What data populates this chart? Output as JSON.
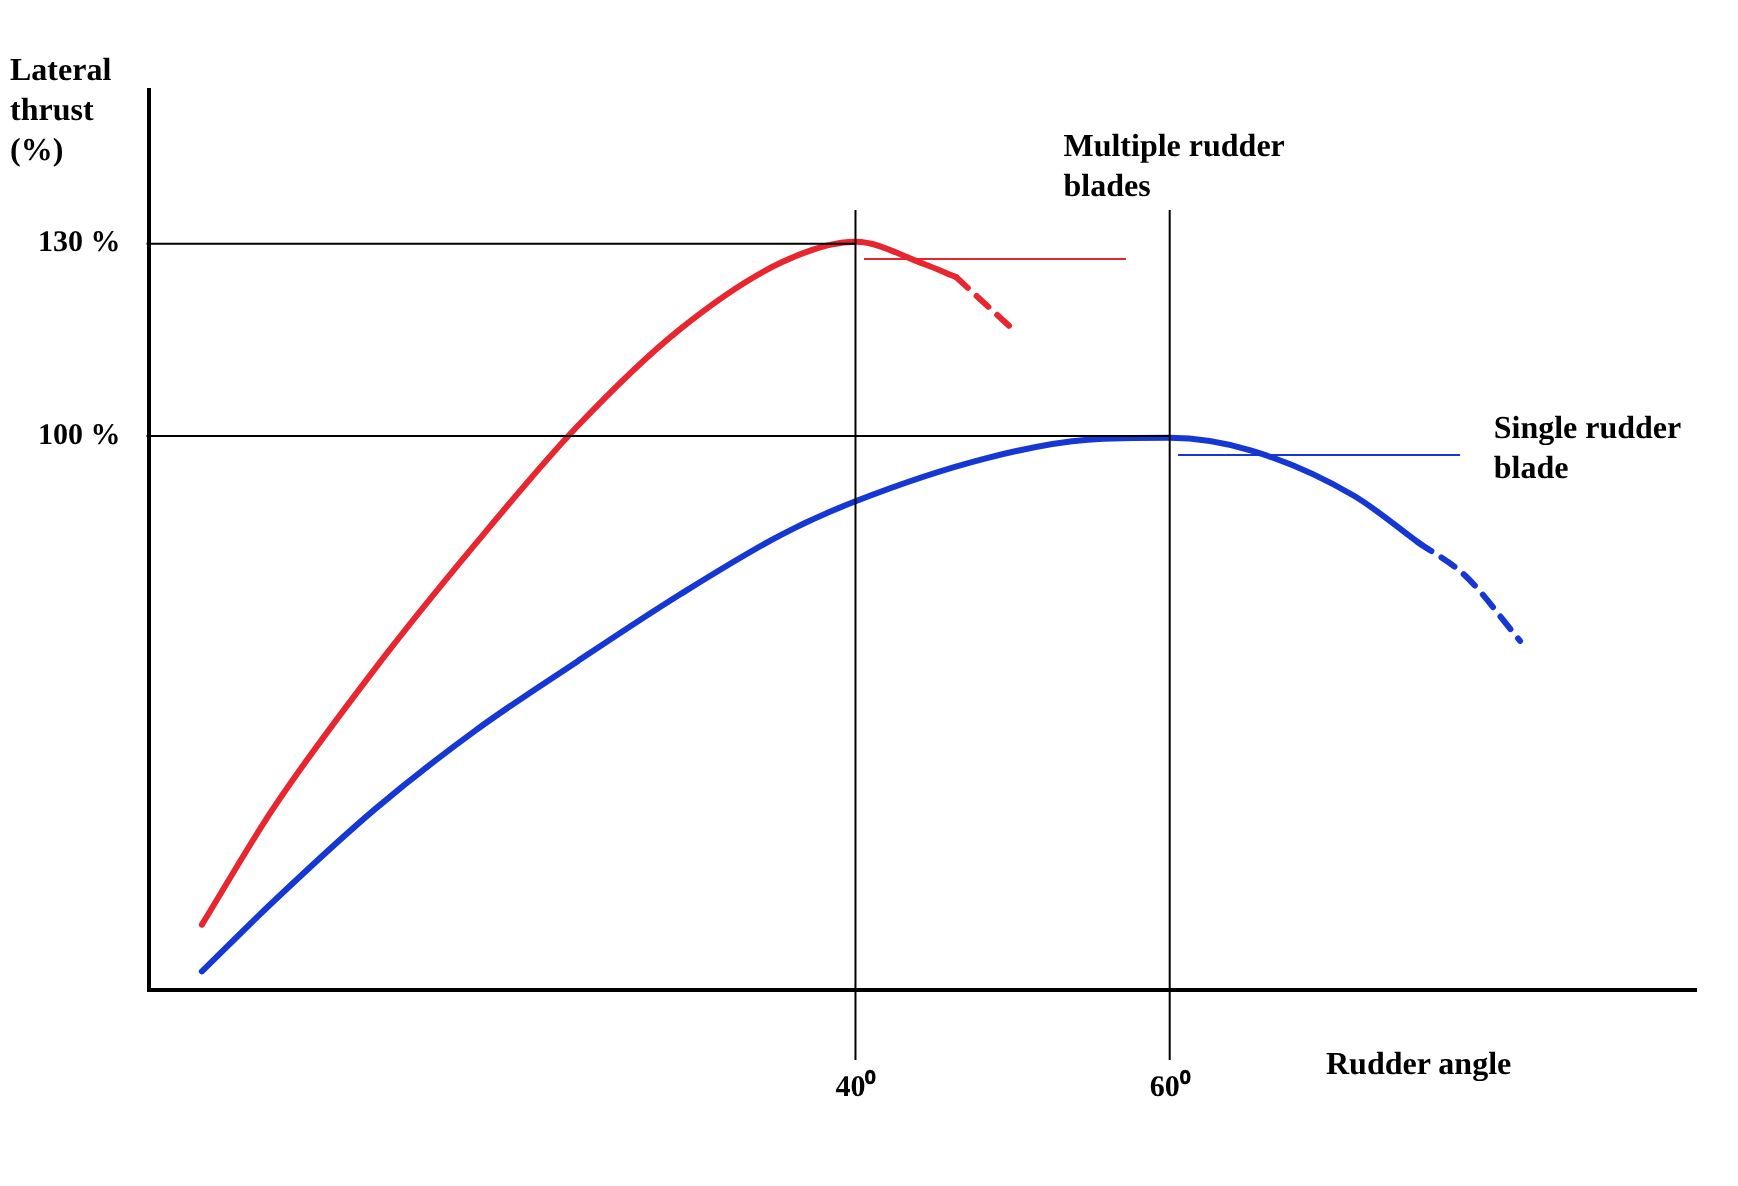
{
  "chart_data": {
    "type": "line",
    "xlabel": "Rudder angle",
    "ylabel": "Lateral thrust (%)",
    "xlim": [
      -5,
      93.5
    ],
    "ylim": [
      13.5,
      154
    ],
    "xticks": [
      {
        "value": 40,
        "label": "40⁰"
      },
      {
        "value": 60,
        "label": "60⁰"
      }
    ],
    "yticks": [
      {
        "value": 100,
        "label": "100 %"
      },
      {
        "value": 130,
        "label": "130 %"
      }
    ],
    "grid": false,
    "legend": false,
    "marker": "none",
    "ref_lines": [
      {
        "axis": "y",
        "value": 130,
        "color": "#000000"
      },
      {
        "axis": "y",
        "value": 100,
        "color": "#000000"
      },
      {
        "axis": "x",
        "value": 40,
        "color": "#000000"
      },
      {
        "axis": "x",
        "value": 60,
        "color": "#000000"
      }
    ],
    "series": [
      {
        "name": "Multiple rudder blades",
        "color": "#e8262f",
        "line_style": "solid",
        "x": [
          -1.6,
          2.9,
          9.4,
          15.8,
          22.3,
          28.8,
          35.3,
          40,
          44.4,
          46.4
        ],
        "values": [
          23.7,
          41.7,
          63.6,
          83.1,
          101.5,
          116.6,
          127.1,
          130.3,
          126.8,
          124.8
        ]
      },
      {
        "color": "#e8262f",
        "line_style": "dashed",
        "x": [
          46.4,
          49.9
        ],
        "values": [
          124.8,
          116.9
        ]
      },
      {
        "name": "Single rudder blade",
        "color": "#1537d4",
        "line_style": "solid",
        "x": [
          -1.6,
          2.9,
          9.4,
          15.8,
          22.3,
          28.8,
          35.3,
          40,
          48.3,
          54.8,
          60,
          65.2,
          71.7,
          75.8
        ],
        "values": [
          16.4,
          27.2,
          41.7,
          54.0,
          64.8,
          75.2,
          84.6,
          89.8,
          96.5,
          99.4,
          99.7,
          97.7,
          90.7,
          83.4
        ]
      },
      {
        "color": "#1537d4",
        "line_style": "dashed",
        "x": [
          75.8,
          78.8,
          82.3
        ],
        "values": [
          83.4,
          78.2,
          68.0
        ]
      }
    ]
  }
}
